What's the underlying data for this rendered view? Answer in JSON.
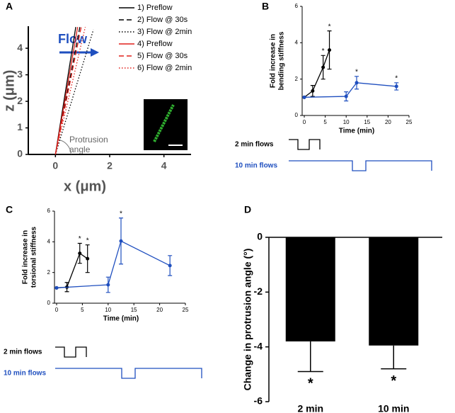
{
  "chart_data": [
    {
      "type": "line",
      "panel": "A",
      "xlabel": "x (μm)",
      "ylabel": "z (μm)",
      "annotation": "Flow",
      "angle_label": [
        "Protrusion",
        "angle"
      ],
      "xlim": [
        -1,
        5
      ],
      "ylim": [
        0,
        4.83
      ],
      "xticks": [
        0,
        2,
        4
      ],
      "yticks": [
        0,
        1,
        2,
        3,
        4
      ],
      "series": [
        {
          "name": "1) Preflow",
          "color": "#000000",
          "dash": "solid",
          "x": [
            0,
            0.75
          ],
          "values": [
            0,
            4.8
          ]
        },
        {
          "name": "2) Flow @ 30s",
          "color": "#000000",
          "dash": "dashed",
          "x": [
            0,
            0.9
          ],
          "values": [
            0,
            4.8
          ]
        },
        {
          "name": "3) Flow @ 2min",
          "color": "#000000",
          "dash": "dotted",
          "x": [
            0,
            1.4
          ],
          "values": [
            0,
            4.7
          ]
        },
        {
          "name": "4) Preflow",
          "color": "#e0201b",
          "dash": "solid",
          "x": [
            0,
            0.82
          ],
          "values": [
            0,
            4.8
          ]
        },
        {
          "name": "5) Flow @ 30s",
          "color": "#e0201b",
          "dash": "dashed",
          "x": [
            0,
            0.95
          ],
          "values": [
            0,
            4.8
          ]
        },
        {
          "name": "6) Flow @ 2min",
          "color": "#e0201b",
          "dash": "dotted",
          "x": [
            0,
            1.1
          ],
          "values": [
            0,
            4.8
          ]
        }
      ]
    },
    {
      "type": "errorline",
      "panel": "B",
      "xlabel": "Time (min)",
      "ylabel": [
        "Fold increase in",
        "bending stiffness"
      ],
      "xlim": [
        0,
        25
      ],
      "ylim": [
        0,
        6
      ],
      "xticks": [
        0,
        5,
        10,
        15,
        20,
        25
      ],
      "yticks": [
        0,
        2,
        4,
        6
      ],
      "sig_label": "*",
      "series": [
        {
          "color": "#000000",
          "x": [
            0,
            2,
            4.5,
            6
          ],
          "values": [
            1,
            1.35,
            2.65,
            3.6
          ],
          "errors": [
            0,
            0.3,
            0.65,
            1.05
          ],
          "significant": [
            false,
            false,
            true,
            true
          ]
        },
        {
          "color": "#1f4fbf",
          "x": [
            0,
            10,
            12.5,
            22
          ],
          "values": [
            1,
            1.05,
            1.8,
            1.6
          ],
          "errors": [
            0,
            0.25,
            0.35,
            0.2
          ],
          "significant": [
            false,
            false,
            true,
            true
          ]
        }
      ],
      "timelines": [
        {
          "label": "2 min flows",
          "color": "#000000"
        },
        {
          "label": "10 min flows",
          "color": "#1f4fbf"
        }
      ]
    },
    {
      "type": "errorline",
      "panel": "C",
      "xlabel": "Time (min)",
      "ylabel": [
        "Fold increase in",
        "torsional stiffness"
      ],
      "xlim": [
        0,
        25
      ],
      "ylim": [
        0,
        6
      ],
      "xticks": [
        0,
        5,
        10,
        15,
        20,
        25
      ],
      "yticks": [
        0,
        2,
        4,
        6
      ],
      "sig_label": "*",
      "series": [
        {
          "color": "#000000",
          "x": [
            0,
            2,
            4.5,
            6
          ],
          "values": [
            1,
            1.05,
            3.25,
            2.9
          ],
          "errors": [
            0,
            0.3,
            0.65,
            0.9
          ],
          "significant": [
            false,
            false,
            true,
            true
          ]
        },
        {
          "color": "#1f4fbf",
          "x": [
            0,
            10,
            12.5,
            22
          ],
          "values": [
            1,
            1.2,
            4.05,
            2.45
          ],
          "errors": [
            0,
            0.5,
            1.5,
            0.65
          ],
          "significant": [
            false,
            false,
            true,
            false
          ]
        }
      ],
      "timelines": [
        {
          "label": "2 min flows",
          "color": "#000000"
        },
        {
          "label": "10 min flows",
          "color": "#1f4fbf"
        }
      ]
    },
    {
      "type": "bar",
      "panel": "D",
      "ylabel": "Change in protrusion angle (°)",
      "categories": [
        "2 min",
        "10 min"
      ],
      "values": [
        -3.8,
        -3.95
      ],
      "errors": [
        1.1,
        0.85
      ],
      "sig_label": "*",
      "color": "#000000",
      "ylim": [
        -6,
        0
      ],
      "yticks": [
        -6,
        -4,
        -2,
        0
      ]
    }
  ]
}
